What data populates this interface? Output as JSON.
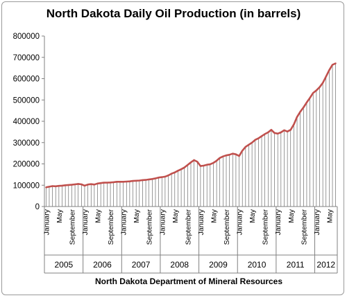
{
  "chart_data": {
    "type": "line",
    "title": "North Dakota Daily Oil Production (in barrels)",
    "xlabel": "North Dakota Department of Mineral Resources",
    "ylabel": "",
    "ylim": [
      0,
      800000
    ],
    "yticks": [
      "0",
      "100000",
      "200000",
      "300000",
      "400000",
      "500000",
      "600000",
      "700000",
      "800000"
    ],
    "grid": false,
    "legend": "none",
    "years": [
      "2005",
      "2006",
      "2007",
      "2008",
      "2009",
      "2010",
      "2011",
      "2012"
    ],
    "month_labels": [
      "January",
      "May",
      "September"
    ],
    "series": [
      {
        "color": "#c0504d",
        "x": [
          "2005-01",
          "2005-02",
          "2005-03",
          "2005-04",
          "2005-05",
          "2005-06",
          "2005-07",
          "2005-08",
          "2005-09",
          "2005-10",
          "2005-11",
          "2005-12",
          "2006-01",
          "2006-02",
          "2006-03",
          "2006-04",
          "2006-05",
          "2006-06",
          "2006-07",
          "2006-08",
          "2006-09",
          "2006-10",
          "2006-11",
          "2006-12",
          "2007-01",
          "2007-02",
          "2007-03",
          "2007-04",
          "2007-05",
          "2007-06",
          "2007-07",
          "2007-08",
          "2007-09",
          "2007-10",
          "2007-11",
          "2007-12",
          "2008-01",
          "2008-02",
          "2008-03",
          "2008-04",
          "2008-05",
          "2008-06",
          "2008-07",
          "2008-08",
          "2008-09",
          "2008-10",
          "2008-11",
          "2008-12",
          "2009-01",
          "2009-02",
          "2009-03",
          "2009-04",
          "2009-05",
          "2009-06",
          "2009-07",
          "2009-08",
          "2009-09",
          "2009-10",
          "2009-11",
          "2009-12",
          "2010-01",
          "2010-02",
          "2010-03",
          "2010-04",
          "2010-05",
          "2010-06",
          "2010-07",
          "2010-08",
          "2010-09",
          "2010-10",
          "2010-11",
          "2010-12",
          "2011-01",
          "2011-02",
          "2011-03",
          "2011-04",
          "2011-05",
          "2011-06",
          "2011-07",
          "2011-08",
          "2011-09",
          "2011-10",
          "2011-11",
          "2011-12",
          "2012-01",
          "2012-02",
          "2012-03",
          "2012-04",
          "2012-05",
          "2012-06",
          "2012-07"
        ],
        "values": [
          90000,
          93000,
          96000,
          95000,
          97000,
          98000,
          100000,
          101000,
          102000,
          104000,
          106000,
          104000,
          98000,
          103000,
          105000,
          103000,
          108000,
          110000,
          112000,
          112000,
          113000,
          114000,
          116000,
          116000,
          116000,
          117000,
          118000,
          120000,
          121000,
          122000,
          124000,
          125000,
          127000,
          129000,
          132000,
          136000,
          138000,
          140000,
          146000,
          154000,
          160000,
          168000,
          175000,
          183000,
          195000,
          207000,
          218000,
          210000,
          190000,
          192000,
          196000,
          198000,
          205000,
          215000,
          228000,
          235000,
          240000,
          243000,
          248000,
          245000,
          237000,
          262000,
          280000,
          290000,
          300000,
          313000,
          320000,
          330000,
          340000,
          348000,
          360000,
          345000,
          342000,
          348000,
          358000,
          352000,
          360000,
          385000,
          420000,
          445000,
          465000,
          488000,
          510000,
          533000,
          545000,
          560000,
          580000,
          610000,
          640000,
          665000,
          672000
        ]
      }
    ]
  }
}
